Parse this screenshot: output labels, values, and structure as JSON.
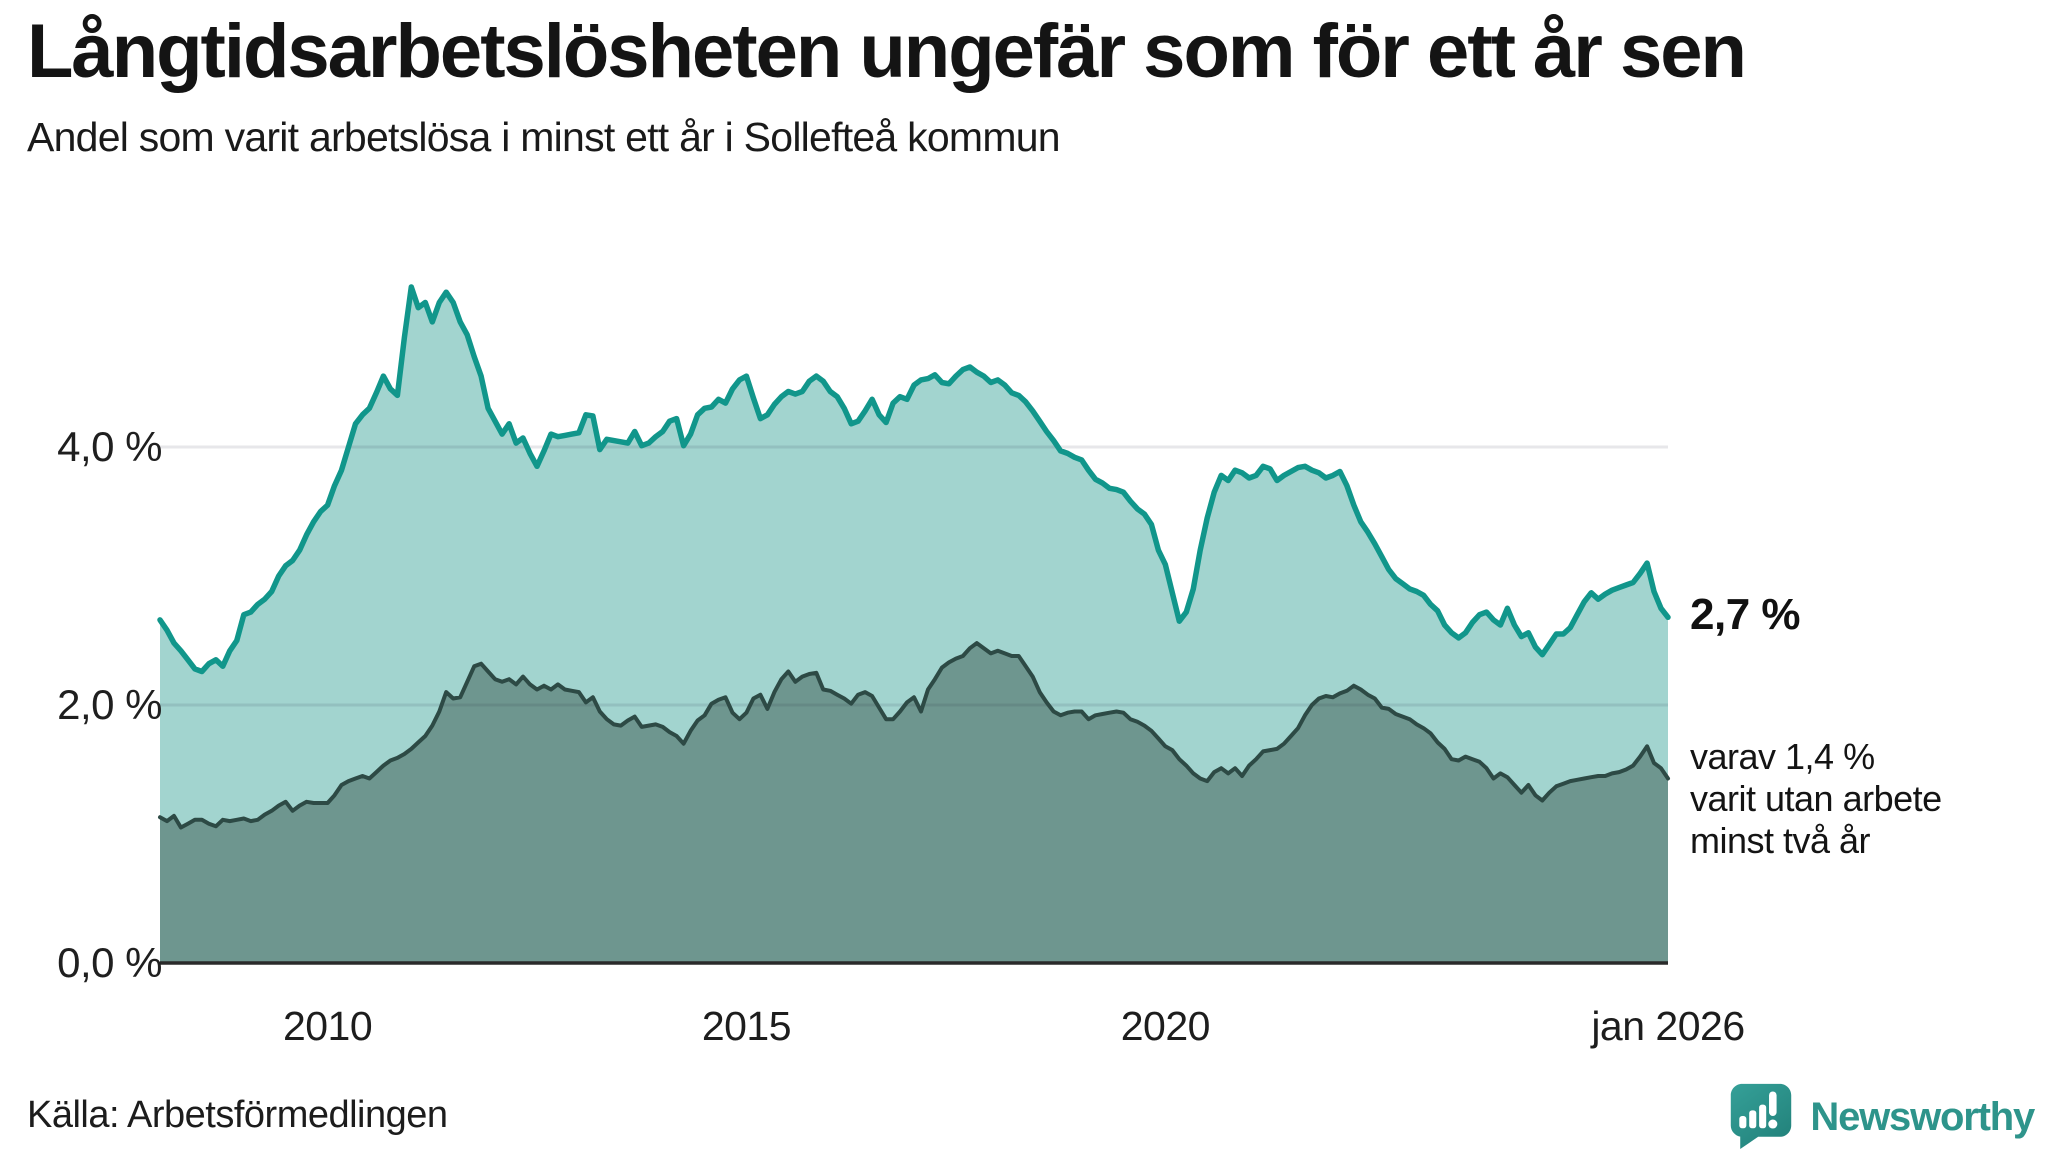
{
  "header": {
    "title": "Långtidsarbetslösheten ungefär som för ett år sen",
    "subtitle": "Andel som varit arbetslösa i minst ett år i Sollefteå kommun"
  },
  "annotations": {
    "latest_total": "2,7 %",
    "latest_two_year_lines": [
      "varav 1,4 %",
      "varit utan arbete",
      "minst två år"
    ]
  },
  "footer": {
    "source": "Källa: Arbetsförmedlingen",
    "brand": "Newsworthy"
  },
  "colors": {
    "series1_line": "#11968b",
    "series1_fill": "#a2d4cf",
    "series2_line": "#2d4a45",
    "series2_fill": "#6e968f",
    "gridline_overlay": "rgba(25,25,55,0.105)",
    "axis_line": "#2a2a2a",
    "brand_teal": "#2e948b",
    "brand_icon_top": "#35a098",
    "brand_icon_bottom": "#23837c"
  },
  "chart_data": {
    "type": "area",
    "title": "Långtidsarbetslösheten ungefär som för ett år sen",
    "subtitle": "Andel som varit arbetslösa i minst ett år i Sollefteå kommun",
    "xlabel": "",
    "ylabel": "",
    "x_range": [
      2008,
      2026
    ],
    "x_step_years": 0.0833333,
    "ylim": [
      0,
      5.6
    ],
    "grid": true,
    "legend_position": "right-annotations",
    "y_ticks": [
      {
        "value": 0,
        "label": "0,0 %"
      },
      {
        "value": 2,
        "label": "2,0 %"
      },
      {
        "value": 4,
        "label": "4,0 %"
      }
    ],
    "x_ticks": [
      {
        "value": 2010,
        "label": "2010"
      },
      {
        "value": 2015,
        "label": "2015"
      },
      {
        "value": 2020,
        "label": "2020"
      },
      {
        "value": 2026,
        "label": "jan 2026"
      }
    ],
    "series": [
      {
        "name": "minst ett år",
        "end_label": "2,7 %",
        "values": [
          2.66,
          2.58,
          2.48,
          2.42,
          2.35,
          2.28,
          2.26,
          2.32,
          2.35,
          2.3,
          2.42,
          2.5,
          2.7,
          2.72,
          2.78,
          2.82,
          2.88,
          3.0,
          3.08,
          3.12,
          3.2,
          3.32,
          3.42,
          3.5,
          3.55,
          3.7,
          3.82,
          4.0,
          4.18,
          4.25,
          4.3,
          4.42,
          4.55,
          4.45,
          4.4,
          4.85,
          5.24,
          5.08,
          5.12,
          4.97,
          5.12,
          5.2,
          5.12,
          4.97,
          4.87,
          4.7,
          4.55,
          4.3,
          4.2,
          4.1,
          4.18,
          4.03,
          4.07,
          3.95,
          3.85,
          3.97,
          4.1,
          4.08,
          4.09,
          4.1,
          4.11,
          4.25,
          4.24,
          3.98,
          4.06,
          4.05,
          4.04,
          4.03,
          4.12,
          4.01,
          4.03,
          4.08,
          4.12,
          4.2,
          4.22,
          4.01,
          4.1,
          4.25,
          4.3,
          4.31,
          4.37,
          4.34,
          4.45,
          4.52,
          4.55,
          4.38,
          4.22,
          4.25,
          4.33,
          4.39,
          4.43,
          4.41,
          4.43,
          4.51,
          4.55,
          4.51,
          4.43,
          4.39,
          4.3,
          4.18,
          4.2,
          4.28,
          4.37,
          4.25,
          4.19,
          4.34,
          4.39,
          4.37,
          4.48,
          4.52,
          4.53,
          4.56,
          4.5,
          4.49,
          4.55,
          4.6,
          4.62,
          4.58,
          4.55,
          4.5,
          4.52,
          4.48,
          4.42,
          4.4,
          4.35,
          4.28,
          4.2,
          4.12,
          4.05,
          3.97,
          3.95,
          3.92,
          3.9,
          3.82,
          3.75,
          3.72,
          3.68,
          3.67,
          3.65,
          3.58,
          3.52,
          3.48,
          3.4,
          3.2,
          3.09,
          2.87,
          2.65,
          2.72,
          2.9,
          3.2,
          3.45,
          3.65,
          3.78,
          3.74,
          3.82,
          3.8,
          3.76,
          3.78,
          3.85,
          3.83,
          3.74,
          3.78,
          3.81,
          3.84,
          3.85,
          3.82,
          3.8,
          3.76,
          3.78,
          3.81,
          3.7,
          3.55,
          3.42,
          3.34,
          3.25,
          3.15,
          3.05,
          2.98,
          2.94,
          2.9,
          2.88,
          2.85,
          2.78,
          2.73,
          2.62,
          2.56,
          2.52,
          2.56,
          2.64,
          2.7,
          2.72,
          2.66,
          2.62,
          2.75,
          2.62,
          2.53,
          2.56,
          2.45,
          2.39,
          2.47,
          2.55,
          2.55,
          2.6,
          2.7,
          2.8,
          2.87,
          2.82,
          2.86,
          2.89,
          2.91,
          2.93,
          2.95,
          3.02,
          3.1,
          2.88,
          2.75,
          2.68
        ]
      },
      {
        "name": "minst två år",
        "end_label": "varav 1,4 % varit utan arbete minst två år",
        "values": [
          1.13,
          1.1,
          1.14,
          1.05,
          1.08,
          1.11,
          1.11,
          1.08,
          1.06,
          1.11,
          1.1,
          1.11,
          1.12,
          1.1,
          1.11,
          1.15,
          1.18,
          1.22,
          1.25,
          1.18,
          1.22,
          1.25,
          1.24,
          1.24,
          1.24,
          1.3,
          1.38,
          1.41,
          1.43,
          1.45,
          1.43,
          1.48,
          1.53,
          1.57,
          1.59,
          1.62,
          1.66,
          1.71,
          1.76,
          1.84,
          1.95,
          2.1,
          2.05,
          2.06,
          2.18,
          2.3,
          2.32,
          2.26,
          2.2,
          2.18,
          2.2,
          2.16,
          2.22,
          2.16,
          2.12,
          2.15,
          2.12,
          2.16,
          2.12,
          2.11,
          2.1,
          2.02,
          2.06,
          1.95,
          1.89,
          1.85,
          1.84,
          1.88,
          1.91,
          1.83,
          1.84,
          1.85,
          1.83,
          1.79,
          1.76,
          1.7,
          1.8,
          1.88,
          1.92,
          2.01,
          2.04,
          2.06,
          1.94,
          1.89,
          1.94,
          2.05,
          2.08,
          1.97,
          2.1,
          2.2,
          2.26,
          2.18,
          2.22,
          2.24,
          2.25,
          2.12,
          2.11,
          2.08,
          2.05,
          2.01,
          2.08,
          2.1,
          2.07,
          1.98,
          1.89,
          1.89,
          1.95,
          2.02,
          2.06,
          1.95,
          2.12,
          2.2,
          2.29,
          2.33,
          2.36,
          2.38,
          2.44,
          2.48,
          2.44,
          2.4,
          2.42,
          2.4,
          2.38,
          2.38,
          2.3,
          2.22,
          2.1,
          2.02,
          1.95,
          1.92,
          1.94,
          1.95,
          1.95,
          1.89,
          1.92,
          1.93,
          1.94,
          1.95,
          1.94,
          1.89,
          1.87,
          1.84,
          1.8,
          1.74,
          1.68,
          1.65,
          1.58,
          1.53,
          1.47,
          1.43,
          1.41,
          1.48,
          1.51,
          1.47,
          1.51,
          1.45,
          1.53,
          1.58,
          1.64,
          1.65,
          1.66,
          1.7,
          1.76,
          1.82,
          1.92,
          2.0,
          2.05,
          2.07,
          2.06,
          2.09,
          2.11,
          2.15,
          2.12,
          2.08,
          2.05,
          1.98,
          1.97,
          1.93,
          1.91,
          1.89,
          1.85,
          1.82,
          1.78,
          1.71,
          1.66,
          1.58,
          1.57,
          1.6,
          1.58,
          1.56,
          1.51,
          1.43,
          1.47,
          1.44,
          1.38,
          1.32,
          1.38,
          1.3,
          1.26,
          1.32,
          1.37,
          1.39,
          1.41,
          1.42,
          1.43,
          1.44,
          1.45,
          1.45,
          1.47,
          1.48,
          1.5,
          1.53,
          1.6,
          1.68,
          1.55,
          1.51,
          1.43
        ]
      }
    ]
  }
}
